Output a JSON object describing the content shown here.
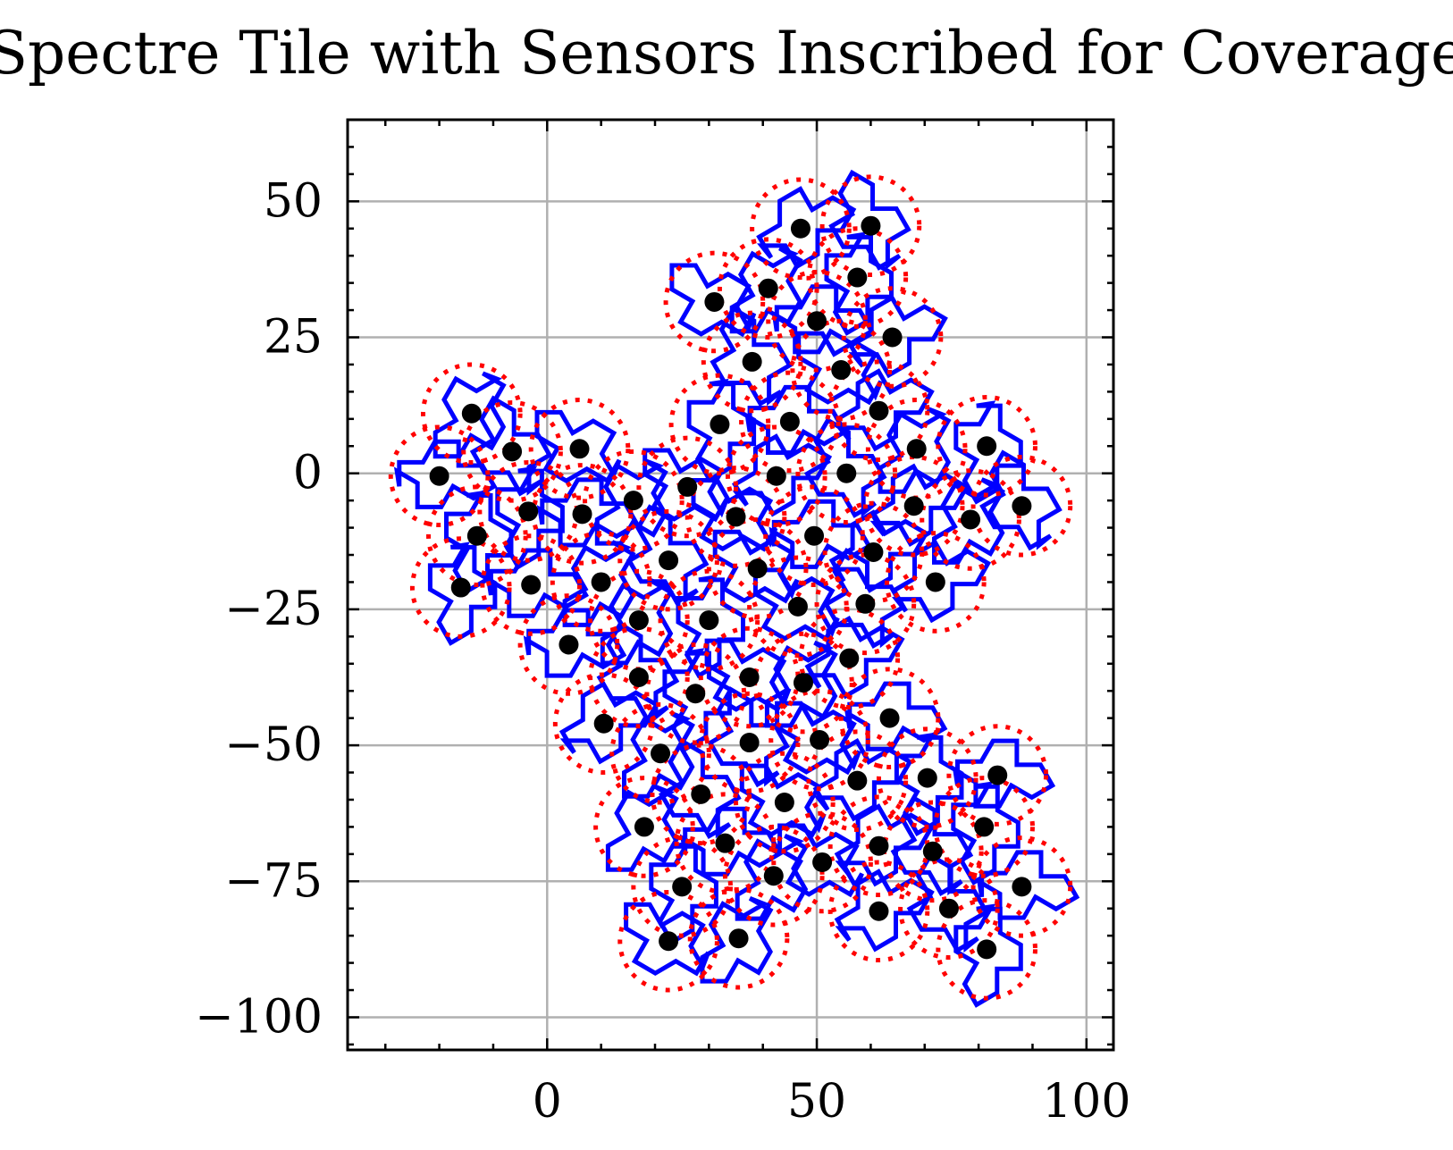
{
  "chart_data": {
    "type": "scatter",
    "title": "Spectre Tile with Sensors Inscribed for Coverage",
    "xlabel": "",
    "ylabel": "",
    "xlim": [
      -37,
      105
    ],
    "ylim": [
      -106,
      65
    ],
    "xticks": [
      0,
      50,
      100
    ],
    "xtick_labels": [
      "0",
      "50",
      "100"
    ],
    "yticks": [
      50,
      25,
      0,
      -25,
      -50,
      -75,
      -100
    ],
    "ytick_labels": [
      "50",
      "25",
      "0",
      "−25",
      "−50",
      "−75",
      "−100"
    ],
    "grid": true,
    "legend": "none",
    "colors": {
      "tile_outline": "#0000ff",
      "coverage_circle": "#ff0000",
      "sensor": "#000000",
      "grid": "#b0b0b0"
    },
    "coverage_radius": 9,
    "sensors": [
      [
        47,
        45
      ],
      [
        60,
        45.5
      ],
      [
        31,
        31.5
      ],
      [
        41,
        34
      ],
      [
        57.5,
        36
      ],
      [
        50,
        28
      ],
      [
        64,
        25
      ],
      [
        38,
        20.5
      ],
      [
        54.5,
        19
      ],
      [
        -14,
        11
      ],
      [
        32,
        9
      ],
      [
        45,
        9.5
      ],
      [
        61.5,
        11.5
      ],
      [
        -6.5,
        4
      ],
      [
        6,
        4.5
      ],
      [
        68.5,
        4.5
      ],
      [
        81.5,
        5
      ],
      [
        -20,
        -0.5
      ],
      [
        42.5,
        -0.5
      ],
      [
        55.5,
        0
      ],
      [
        26,
        -2.5
      ],
      [
        16,
        -5
      ],
      [
        -3.5,
        -7
      ],
      [
        6.5,
        -7.5
      ],
      [
        68,
        -6
      ],
      [
        88,
        -6
      ],
      [
        35,
        -8
      ],
      [
        78.5,
        -8.5
      ],
      [
        -13,
        -11.5
      ],
      [
        49.5,
        -11.5
      ],
      [
        60.5,
        -14.5
      ],
      [
        22.5,
        -16
      ],
      [
        39,
        -17.5
      ],
      [
        10,
        -20
      ],
      [
        -16,
        -21
      ],
      [
        -3,
        -20.5
      ],
      [
        72,
        -20
      ],
      [
        59,
        -24
      ],
      [
        46.5,
        -24.5
      ],
      [
        17,
        -27
      ],
      [
        30,
        -27
      ],
      [
        4,
        -31.5
      ],
      [
        56,
        -34
      ],
      [
        17,
        -37.5
      ],
      [
        37.5,
        -37.5
      ],
      [
        47.5,
        -38.5
      ],
      [
        27.5,
        -40.5
      ],
      [
        63.5,
        -45
      ],
      [
        10.5,
        -46
      ],
      [
        37.5,
        -49.5
      ],
      [
        50.5,
        -49
      ],
      [
        21,
        -51.5
      ],
      [
        70.5,
        -56
      ],
      [
        83.5,
        -55.5
      ],
      [
        57.5,
        -56.5
      ],
      [
        28.5,
        -59
      ],
      [
        44,
        -60.5
      ],
      [
        18,
        -65
      ],
      [
        81,
        -65
      ],
      [
        33,
        -68
      ],
      [
        61.5,
        -68.5
      ],
      [
        71.5,
        -69.5
      ],
      [
        51,
        -71.5
      ],
      [
        42,
        -74
      ],
      [
        25,
        -76
      ],
      [
        88,
        -76
      ],
      [
        61.5,
        -80.5
      ],
      [
        74.5,
        -80
      ],
      [
        22.5,
        -86
      ],
      [
        35.5,
        -85.5
      ],
      [
        81.5,
        -87.5
      ]
    ]
  }
}
